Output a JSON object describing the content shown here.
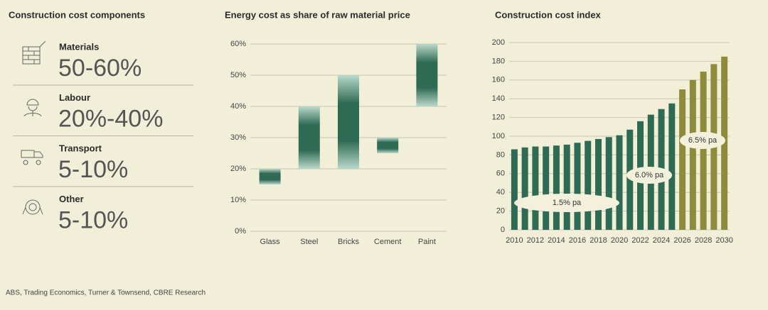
{
  "panel": {
    "title": "Construction cost components",
    "items": [
      {
        "label": "Materials",
        "value": "50-60%"
      },
      {
        "label": "Labour",
        "value": "20%-40%"
      },
      {
        "label": "Transport",
        "value": "5-10%"
      },
      {
        "label": "Other",
        "value": "5-10%"
      }
    ]
  },
  "chart_data": [
    {
      "type": "range_bar",
      "title": "Energy cost as share of raw material price",
      "categories": [
        "Glass",
        "Steel",
        "Bricks",
        "Cement",
        "Paint"
      ],
      "ranges": [
        [
          15,
          20
        ],
        [
          20,
          40
        ],
        [
          20,
          50
        ],
        [
          25,
          30
        ],
        [
          40,
          60
        ]
      ],
      "color": "#2f6a55",
      "ylim": [
        0,
        60
      ],
      "yticks": [
        {
          "value": 0,
          "label": "0%"
        },
        {
          "value": 10,
          "label": "10%"
        },
        {
          "value": 20,
          "label": "20%"
        },
        {
          "value": 30,
          "label": "30%"
        },
        {
          "value": 40,
          "label": "40%"
        },
        {
          "value": 50,
          "label": "50%"
        },
        {
          "value": 60,
          "label": "60%"
        }
      ],
      "grid": true
    },
    {
      "type": "bar",
      "title": "Construction cost index",
      "categories": [
        "2010",
        null,
        "2012",
        null,
        "2014",
        null,
        "2016",
        null,
        "2018",
        null,
        "2020",
        null,
        "2022",
        null,
        "2024",
        null,
        "2026",
        null,
        "2028",
        null,
        "2030"
      ],
      "values": [
        86,
        88,
        89,
        89,
        90,
        91,
        93,
        95,
        97,
        99,
        101,
        107,
        116,
        123,
        129,
        135,
        150,
        160,
        169,
        177,
        185
      ],
      "colors": [
        "#2f6a55",
        "#2f6a55",
        "#2f6a55",
        "#2f6a55",
        "#2f6a55",
        "#2f6a55",
        "#2f6a55",
        "#2f6a55",
        "#2f6a55",
        "#2f6a55",
        "#2f6a55",
        "#2f6a55",
        "#2f6a55",
        "#2f6a55",
        "#2f6a55",
        "#2f6a55",
        "#8e8c3a",
        "#8e8c3a",
        "#8e8c3a",
        "#8e8c3a",
        "#8e8c3a"
      ],
      "ylim": [
        0,
        200
      ],
      "yticks": [
        0,
        20,
        40,
        60,
        80,
        100,
        120,
        140,
        160,
        180,
        200
      ],
      "grid": true,
      "annotations": [
        "1.5% pa",
        "6.0% pa",
        "6.5% pa"
      ]
    }
  ],
  "source": "ABS, Trading Economics, Turner & Townsend, CBRE Research"
}
